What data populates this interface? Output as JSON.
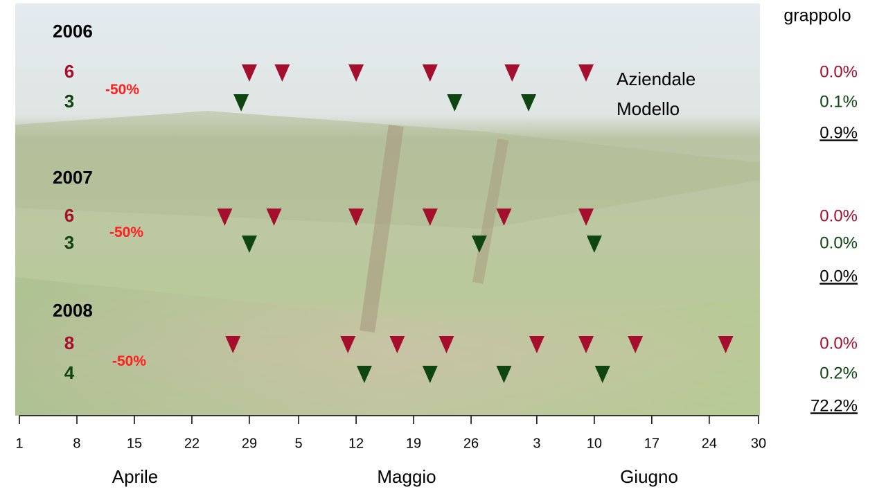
{
  "chart_data": {
    "type": "timeline",
    "header": "grappolo",
    "months": [
      "Aprile",
      "Maggio",
      "Giugno"
    ],
    "xlim": [
      1,
      91
    ],
    "xticks": [
      1,
      8,
      15,
      22,
      29,
      {
        "value": 35,
        "label": "5"
      },
      {
        "value": 42,
        "label": "12"
      },
      {
        "value": 49,
        "label": "19"
      },
      {
        "value": 56,
        "label": "26"
      },
      {
        "value": 64,
        "label": "3"
      },
      {
        "value": 71,
        "label": "10"
      },
      {
        "value": 78,
        "label": "17"
      },
      {
        "value": 85,
        "label": "24"
      },
      {
        "value": 91,
        "label": "30"
      }
    ],
    "series": [
      {
        "name": "Aziendale",
        "color": "#a50f2d"
      },
      {
        "name": "Modello",
        "color": "#0f4511"
      }
    ],
    "reduction_color": "#ff1f1f",
    "years": [
      {
        "year": "2006",
        "counts": [
          6,
          3
        ],
        "reduction": "-50%",
        "x": [
          [
            29,
            33,
            42,
            51,
            61,
            70
          ],
          [
            28,
            54,
            63
          ]
        ],
        "incidence": [
          "0.0%",
          "0.1%"
        ],
        "control": "0.9%"
      },
      {
        "year": "2007",
        "counts": [
          6,
          3
        ],
        "reduction": "-50%",
        "x": [
          [
            26,
            32,
            42,
            51,
            60,
            70
          ],
          [
            29,
            57,
            71
          ]
        ],
        "incidence": [
          "0.0%",
          "0.0%"
        ],
        "control": "0.0%"
      },
      {
        "year": "2008",
        "counts": [
          8,
          4
        ],
        "reduction": "-50%",
        "x": [
          [
            27,
            41,
            47,
            53,
            64,
            70,
            76,
            87
          ],
          [
            43,
            51,
            60,
            72
          ]
        ],
        "incidence": [
          "0.0%",
          "0.2%"
        ],
        "control": "72.2%"
      }
    ]
  }
}
